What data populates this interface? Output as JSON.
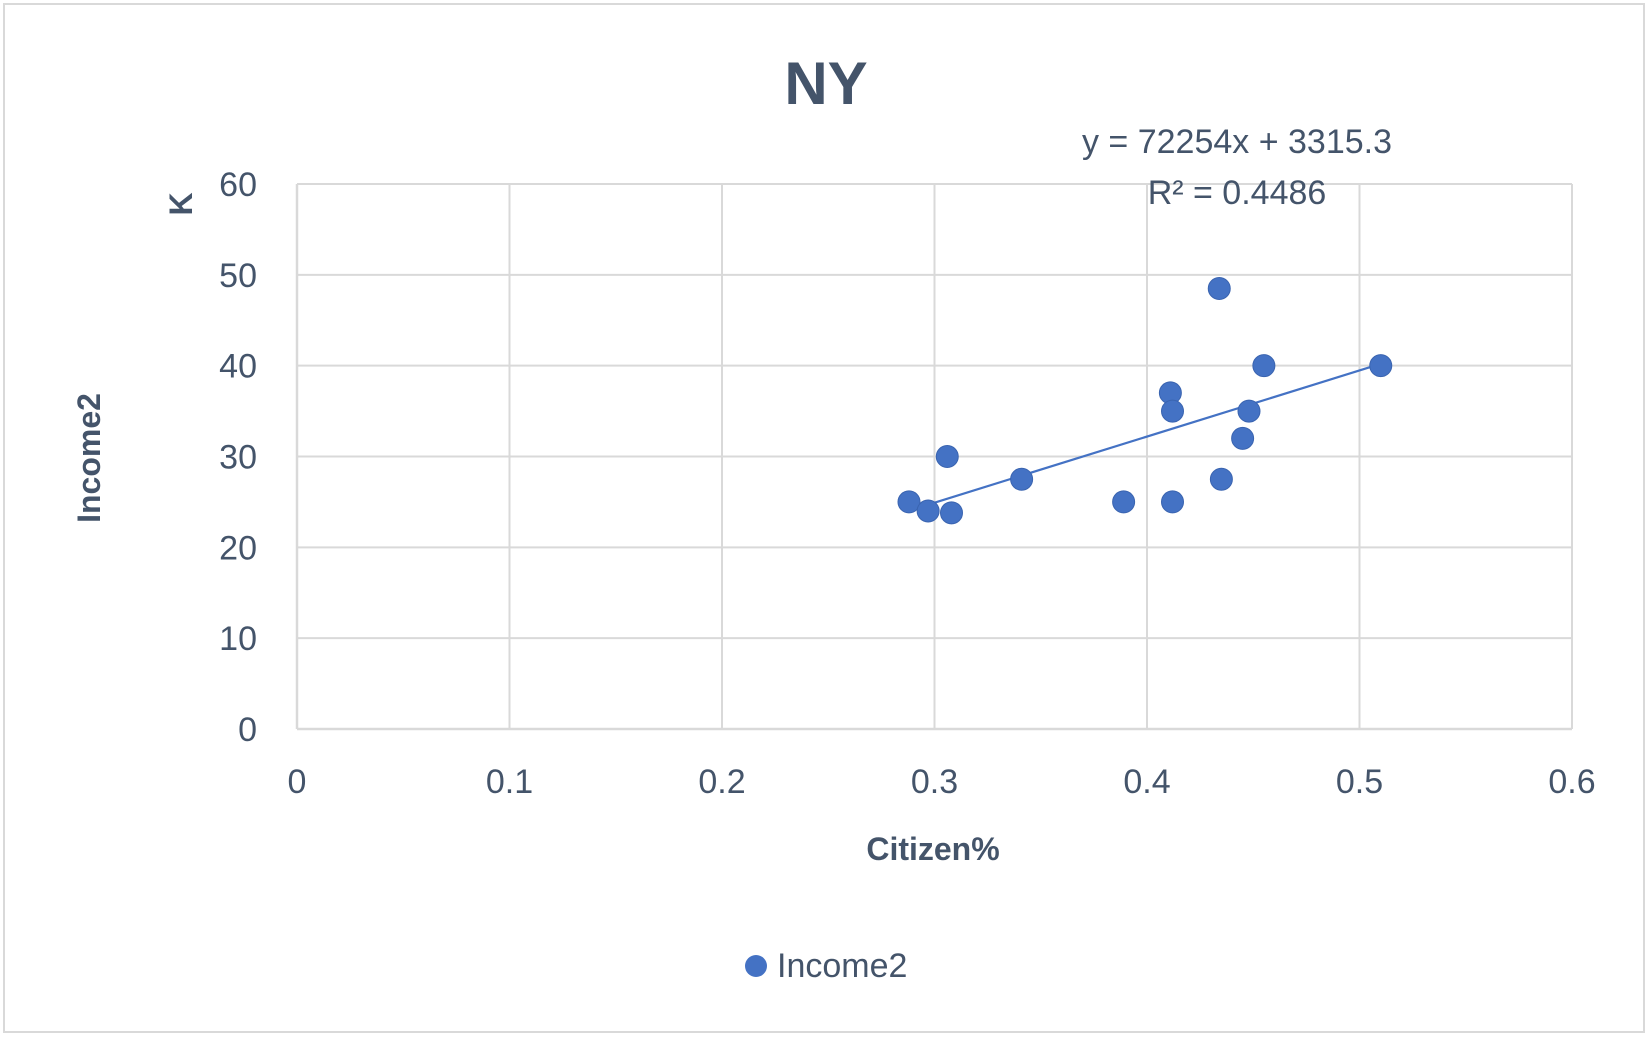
{
  "chart_data": {
    "type": "scatter",
    "title": "NY",
    "xlabel": "Citizen%",
    "ylabel": "Income2",
    "yunit": "K",
    "xlim": [
      0,
      0.6
    ],
    "ylim": [
      0,
      60
    ],
    "xticks": [
      "0",
      "0.1",
      "0.2",
      "0.3",
      "0.4",
      "0.5",
      "0.6"
    ],
    "yticks": [
      "0",
      "10",
      "20",
      "30",
      "40",
      "50",
      "60"
    ],
    "grid": true,
    "legend_position": "bottom",
    "series": [
      {
        "name": "Income2",
        "color": "#4472c4",
        "points": [
          {
            "x": 0.288,
            "y": 25
          },
          {
            "x": 0.297,
            "y": 24
          },
          {
            "x": 0.308,
            "y": 23.8
          },
          {
            "x": 0.306,
            "y": 30
          },
          {
            "x": 0.341,
            "y": 27.5
          },
          {
            "x": 0.389,
            "y": 25
          },
          {
            "x": 0.411,
            "y": 37
          },
          {
            "x": 0.412,
            "y": 35
          },
          {
            "x": 0.412,
            "y": 25
          },
          {
            "x": 0.434,
            "y": 48.5
          },
          {
            "x": 0.435,
            "y": 27.5
          },
          {
            "x": 0.445,
            "y": 32
          },
          {
            "x": 0.448,
            "y": 35
          },
          {
            "x": 0.455,
            "y": 40
          },
          {
            "x": 0.51,
            "y": 40
          }
        ]
      }
    ],
    "trendline": {
      "equation_label": "y = 72254x + 3315.3",
      "r2_label": "R² = 0.4486",
      "x_range": [
        0.297,
        0.51
      ],
      "y_range": [
        24.7,
        40.2
      ]
    }
  }
}
